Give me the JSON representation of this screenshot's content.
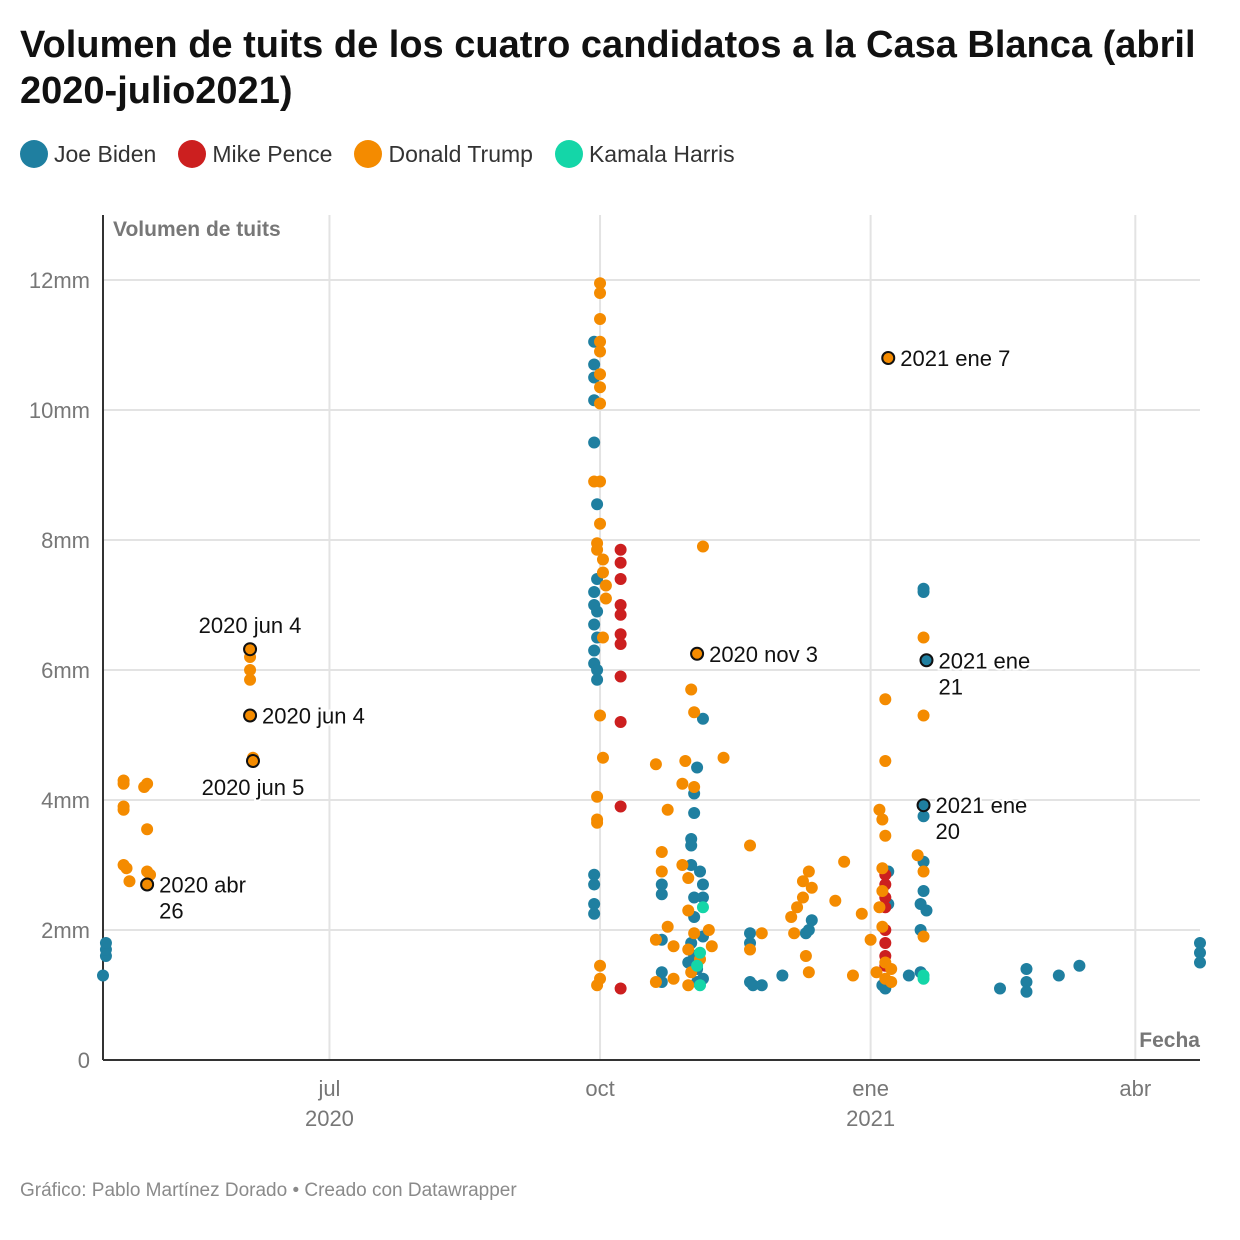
{
  "title": "Volumen de tuits de los cuatro candidatos a la Casa Blanca (abril 2020-julio2021)",
  "footer": "Gráfico: Pablo Martínez Dorado • Creado con Datawrapper",
  "legend": [
    {
      "name": "Joe Biden",
      "color": "#1f7fa0"
    },
    {
      "name": "Mike Pence",
      "color": "#cc1f1f"
    },
    {
      "name": "Donald Trump",
      "color": "#f48b00"
    },
    {
      "name": "Kamala Harris",
      "color": "#14d6a8"
    }
  ],
  "chart_data": {
    "type": "scatter",
    "ylabel": "Volumen de tuits",
    "xlabel": "Fecha",
    "ylim": [
      0,
      13
    ],
    "xlim": [
      "2020-04-15",
      "2021-04-23"
    ],
    "y_ticks": [
      {
        "value": 0,
        "label": "0"
      },
      {
        "value": 2,
        "label": "2mm"
      },
      {
        "value": 4,
        "label": "4mm"
      },
      {
        "value": 6,
        "label": "6mm"
      },
      {
        "value": 8,
        "label": "8mm"
      },
      {
        "value": 10,
        "label": "10mm"
      },
      {
        "value": 12,
        "label": "12mm"
      }
    ],
    "x_ticks": [
      {
        "date": "2020-07-01",
        "label": "jul",
        "sublabel": "2020"
      },
      {
        "date": "2020-10-01",
        "label": "oct",
        "sublabel": ""
      },
      {
        "date": "2021-01-01",
        "label": "ene",
        "sublabel": "2021"
      },
      {
        "date": "2021-04-01",
        "label": "abr",
        "sublabel": ""
      }
    ],
    "grid": true,
    "legend_position": "top-left",
    "series": [
      {
        "name": "Joe Biden",
        "color": "#1f7fa0",
        "points": [
          [
            "2020-04-15",
            1.3
          ],
          [
            "2020-04-16",
            1.6
          ],
          [
            "2020-04-16",
            1.7
          ],
          [
            "2020-04-16",
            1.8
          ],
          [
            "2020-09-29",
            11.05
          ],
          [
            "2020-09-29",
            10.7
          ],
          [
            "2020-09-29",
            10.5
          ],
          [
            "2020-09-29",
            10.15
          ],
          [
            "2020-09-29",
            9.5
          ],
          [
            "2020-09-30",
            8.55
          ],
          [
            "2020-09-30",
            7.4
          ],
          [
            "2020-09-29",
            7.2
          ],
          [
            "2020-09-29",
            7.0
          ],
          [
            "2020-09-30",
            6.9
          ],
          [
            "2020-09-29",
            6.7
          ],
          [
            "2020-09-30",
            6.5
          ],
          [
            "2020-09-29",
            6.3
          ],
          [
            "2020-09-29",
            6.1
          ],
          [
            "2020-09-30",
            6.0
          ],
          [
            "2020-09-30",
            5.85
          ],
          [
            "2020-09-29",
            2.85
          ],
          [
            "2020-09-29",
            2.7
          ],
          [
            "2020-09-29",
            2.4
          ],
          [
            "2020-09-29",
            2.25
          ],
          [
            "2020-10-22",
            1.85
          ],
          [
            "2020-10-22",
            1.35
          ],
          [
            "2020-10-22",
            1.2
          ],
          [
            "2020-10-22",
            2.7
          ],
          [
            "2020-10-22",
            2.55
          ],
          [
            "2020-11-02",
            4.1
          ],
          [
            "2020-11-02",
            3.8
          ],
          [
            "2020-11-03",
            4.5
          ],
          [
            "2020-11-05",
            5.25
          ],
          [
            "2020-11-01",
            3.4
          ],
          [
            "2020-11-01",
            3.3
          ],
          [
            "2020-11-01",
            3.0
          ],
          [
            "2020-11-02",
            2.5
          ],
          [
            "2020-11-02",
            2.2
          ],
          [
            "2020-11-01",
            1.8
          ],
          [
            "2020-11-02",
            1.6
          ],
          [
            "2020-11-03",
            1.4
          ],
          [
            "2020-11-03",
            1.2
          ],
          [
            "2020-11-05",
            2.7
          ],
          [
            "2020-11-05",
            2.5
          ],
          [
            "2020-11-05",
            1.9
          ],
          [
            "2020-11-05",
            1.25
          ],
          [
            "2020-11-04",
            2.9
          ],
          [
            "2020-10-31",
            1.5
          ],
          [
            "2020-11-21",
            1.95
          ],
          [
            "2020-11-21",
            1.8
          ],
          [
            "2020-11-21",
            1.2
          ],
          [
            "2020-11-22",
            1.15
          ],
          [
            "2020-11-25",
            1.15
          ],
          [
            "2020-12-02",
            1.3
          ],
          [
            "2020-12-10",
            1.95
          ],
          [
            "2020-12-11",
            2.0
          ],
          [
            "2020-12-12",
            2.15
          ],
          [
            "2021-01-05",
            1.15
          ],
          [
            "2021-01-06",
            1.1
          ],
          [
            "2021-01-07",
            1.2
          ],
          [
            "2021-01-07",
            2.4
          ],
          [
            "2021-01-07",
            2.9
          ],
          [
            "2021-01-14",
            1.3
          ],
          [
            "2021-01-19",
            7.25
          ],
          [
            "2021-01-19",
            7.2
          ],
          [
            "2021-01-19",
            3.75
          ],
          [
            "2021-01-19",
            3.05
          ],
          [
            "2021-01-19",
            2.6
          ],
          [
            "2021-01-18",
            2.4
          ],
          [
            "2021-01-18",
            2.0
          ],
          [
            "2021-01-18",
            1.35
          ],
          [
            "2021-01-20",
            2.3
          ],
          [
            "2021-02-14",
            1.1
          ],
          [
            "2021-02-23",
            1.4
          ],
          [
            "2021-02-23",
            1.2
          ],
          [
            "2021-02-23",
            1.05
          ],
          [
            "2021-03-06",
            1.3
          ],
          [
            "2021-03-13",
            1.45
          ],
          [
            "2021-04-23",
            1.8
          ],
          [
            "2021-04-23",
            1.65
          ],
          [
            "2021-04-23",
            1.5
          ]
        ]
      },
      {
        "name": "Mike Pence",
        "color": "#cc1f1f",
        "points": [
          [
            "2020-10-08",
            7.85
          ],
          [
            "2020-10-08",
            7.65
          ],
          [
            "2020-10-08",
            7.4
          ],
          [
            "2020-10-08",
            7.0
          ],
          [
            "2020-10-08",
            6.85
          ],
          [
            "2020-10-08",
            6.55
          ],
          [
            "2020-10-08",
            6.4
          ],
          [
            "2020-10-08",
            5.9
          ],
          [
            "2020-10-08",
            5.2
          ],
          [
            "2020-10-08",
            3.9
          ],
          [
            "2020-10-08",
            1.1
          ],
          [
            "2021-01-06",
            2.85
          ],
          [
            "2021-01-06",
            2.7
          ],
          [
            "2021-01-06",
            2.5
          ],
          [
            "2021-01-06",
            2.35
          ],
          [
            "2021-01-06",
            2.0
          ],
          [
            "2021-01-06",
            1.8
          ],
          [
            "2021-01-06",
            1.6
          ],
          [
            "2021-01-06",
            1.45
          ]
        ]
      },
      {
        "name": "Donald Trump",
        "color": "#f48b00",
        "points": [
          [
            "2020-04-22",
            4.3
          ],
          [
            "2020-04-22",
            4.25
          ],
          [
            "2020-04-22",
            3.9
          ],
          [
            "2020-04-22",
            3.85
          ],
          [
            "2020-04-22",
            3.0
          ],
          [
            "2020-04-23",
            2.95
          ],
          [
            "2020-04-24",
            2.75
          ],
          [
            "2020-04-29",
            4.2
          ],
          [
            "2020-04-30",
            4.25
          ],
          [
            "2020-04-30",
            3.55
          ],
          [
            "2020-04-30",
            2.9
          ],
          [
            "2020-05-01",
            2.85
          ],
          [
            "2020-06-04",
            6.2
          ],
          [
            "2020-06-04",
            6.0
          ],
          [
            "2020-06-04",
            5.85
          ],
          [
            "2020-06-05",
            4.65
          ],
          [
            "2020-10-01",
            11.95
          ],
          [
            "2020-10-01",
            11.8
          ],
          [
            "2020-10-01",
            11.4
          ],
          [
            "2020-10-01",
            11.05
          ],
          [
            "2020-10-01",
            10.9
          ],
          [
            "2020-10-01",
            10.55
          ],
          [
            "2020-10-01",
            10.35
          ],
          [
            "2020-10-01",
            10.1
          ],
          [
            "2020-09-29",
            8.9
          ],
          [
            "2020-10-01",
            8.9
          ],
          [
            "2020-10-01",
            8.25
          ],
          [
            "2020-09-30",
            7.95
          ],
          [
            "2020-09-30",
            7.85
          ],
          [
            "2020-10-02",
            7.7
          ],
          [
            "2020-10-02",
            7.5
          ],
          [
            "2020-10-03",
            7.3
          ],
          [
            "2020-10-03",
            7.1
          ],
          [
            "2020-10-02",
            6.5
          ],
          [
            "2020-10-01",
            5.3
          ],
          [
            "2020-10-02",
            4.65
          ],
          [
            "2020-09-30",
            4.05
          ],
          [
            "2020-09-30",
            3.7
          ],
          [
            "2020-09-30",
            3.65
          ],
          [
            "2020-10-01",
            1.45
          ],
          [
            "2020-10-01",
            1.25
          ],
          [
            "2020-09-30",
            1.15
          ],
          [
            "2020-10-20",
            4.55
          ],
          [
            "2020-10-20",
            1.85
          ],
          [
            "2020-10-20",
            1.2
          ],
          [
            "2020-10-22",
            3.2
          ],
          [
            "2020-10-22",
            2.9
          ],
          [
            "2020-10-24",
            3.85
          ],
          [
            "2020-10-24",
            2.05
          ],
          [
            "2020-10-26",
            1.75
          ],
          [
            "2020-10-26",
            1.25
          ],
          [
            "2020-10-29",
            4.25
          ],
          [
            "2020-10-30",
            4.6
          ],
          [
            "2020-10-29",
            3.0
          ],
          [
            "2020-10-31",
            2.8
          ],
          [
            "2020-11-01",
            5.7
          ],
          [
            "2020-11-02",
            5.35
          ],
          [
            "2020-11-02",
            4.2
          ],
          [
            "2020-10-31",
            2.3
          ],
          [
            "2020-10-31",
            1.7
          ],
          [
            "2020-10-31",
            1.15
          ],
          [
            "2020-11-01",
            1.35
          ],
          [
            "2020-11-02",
            1.95
          ],
          [
            "2020-11-04",
            1.55
          ],
          [
            "2020-11-05",
            7.9
          ],
          [
            "2020-11-07",
            2.0
          ],
          [
            "2020-11-08",
            1.75
          ],
          [
            "2020-11-12",
            4.65
          ],
          [
            "2020-11-21",
            3.3
          ],
          [
            "2020-11-21",
            1.7
          ],
          [
            "2020-11-25",
            1.95
          ],
          [
            "2020-12-05",
            2.2
          ],
          [
            "2020-12-06",
            1.95
          ],
          [
            "2020-12-07",
            2.35
          ],
          [
            "2020-12-09",
            2.75
          ],
          [
            "2020-12-09",
            2.5
          ],
          [
            "2020-12-10",
            1.6
          ],
          [
            "2020-12-11",
            2.9
          ],
          [
            "2020-12-12",
            2.65
          ],
          [
            "2020-12-11",
            1.35
          ],
          [
            "2020-12-20",
            2.45
          ],
          [
            "2020-12-23",
            3.05
          ],
          [
            "2020-12-26",
            1.3
          ],
          [
            "2020-12-29",
            2.25
          ],
          [
            "2021-01-01",
            1.85
          ],
          [
            "2021-01-03",
            1.35
          ],
          [
            "2021-01-04",
            3.85
          ],
          [
            "2021-01-05",
            3.7
          ],
          [
            "2021-01-06",
            3.45
          ],
          [
            "2021-01-06",
            5.55
          ],
          [
            "2021-01-06",
            4.6
          ],
          [
            "2021-01-05",
            2.95
          ],
          [
            "2021-01-05",
            2.6
          ],
          [
            "2021-01-04",
            2.35
          ],
          [
            "2021-01-05",
            2.05
          ],
          [
            "2021-01-06",
            1.5
          ],
          [
            "2021-01-06",
            1.25
          ],
          [
            "2021-01-08",
            1.4
          ],
          [
            "2021-01-08",
            1.2
          ],
          [
            "2021-01-17",
            3.15
          ],
          [
            "2021-01-19",
            6.5
          ],
          [
            "2021-01-19",
            5.3
          ],
          [
            "2021-01-19",
            1.9
          ],
          [
            "2021-01-19",
            2.9
          ]
        ]
      },
      {
        "name": "Kamala Harris",
        "color": "#14d6a8",
        "points": [
          [
            "2020-11-04",
            1.15
          ],
          [
            "2020-11-04",
            1.65
          ],
          [
            "2020-11-05",
            2.35
          ],
          [
            "2020-11-03",
            1.45
          ],
          [
            "2021-01-19",
            1.3
          ],
          [
            "2021-01-19",
            1.25
          ]
        ]
      }
    ],
    "highlights": [
      {
        "date": "2020-04-30",
        "y": 2.7,
        "series": "Donald Trump",
        "label": [
          "2020 abr",
          "26"
        ],
        "pos": "right"
      },
      {
        "date": "2020-06-04",
        "y": 6.32,
        "series": "Donald Trump",
        "label": [
          "2020 jun 4"
        ],
        "pos": "above"
      },
      {
        "date": "2020-06-04",
        "y": 5.3,
        "series": "Donald Trump",
        "label": [
          "2020 jun 4"
        ],
        "pos": "right"
      },
      {
        "date": "2020-06-05",
        "y": 4.6,
        "series": "Donald Trump",
        "label": [
          "2020 jun 5"
        ],
        "pos": "below"
      },
      {
        "date": "2020-11-03",
        "y": 6.25,
        "series": "Donald Trump",
        "label": [
          "2020 nov 3"
        ],
        "pos": "right"
      },
      {
        "date": "2021-01-07",
        "y": 10.8,
        "series": "Donald Trump",
        "label": [
          "2021 ene 7"
        ],
        "pos": "right"
      },
      {
        "date": "2021-01-20",
        "y": 6.15,
        "series": "Joe Biden",
        "label": [
          "2021 ene",
          "21"
        ],
        "pos": "right"
      },
      {
        "date": "2021-01-19",
        "y": 3.92,
        "series": "Joe Biden",
        "label": [
          "2021 ene",
          "20"
        ],
        "pos": "right"
      }
    ]
  }
}
